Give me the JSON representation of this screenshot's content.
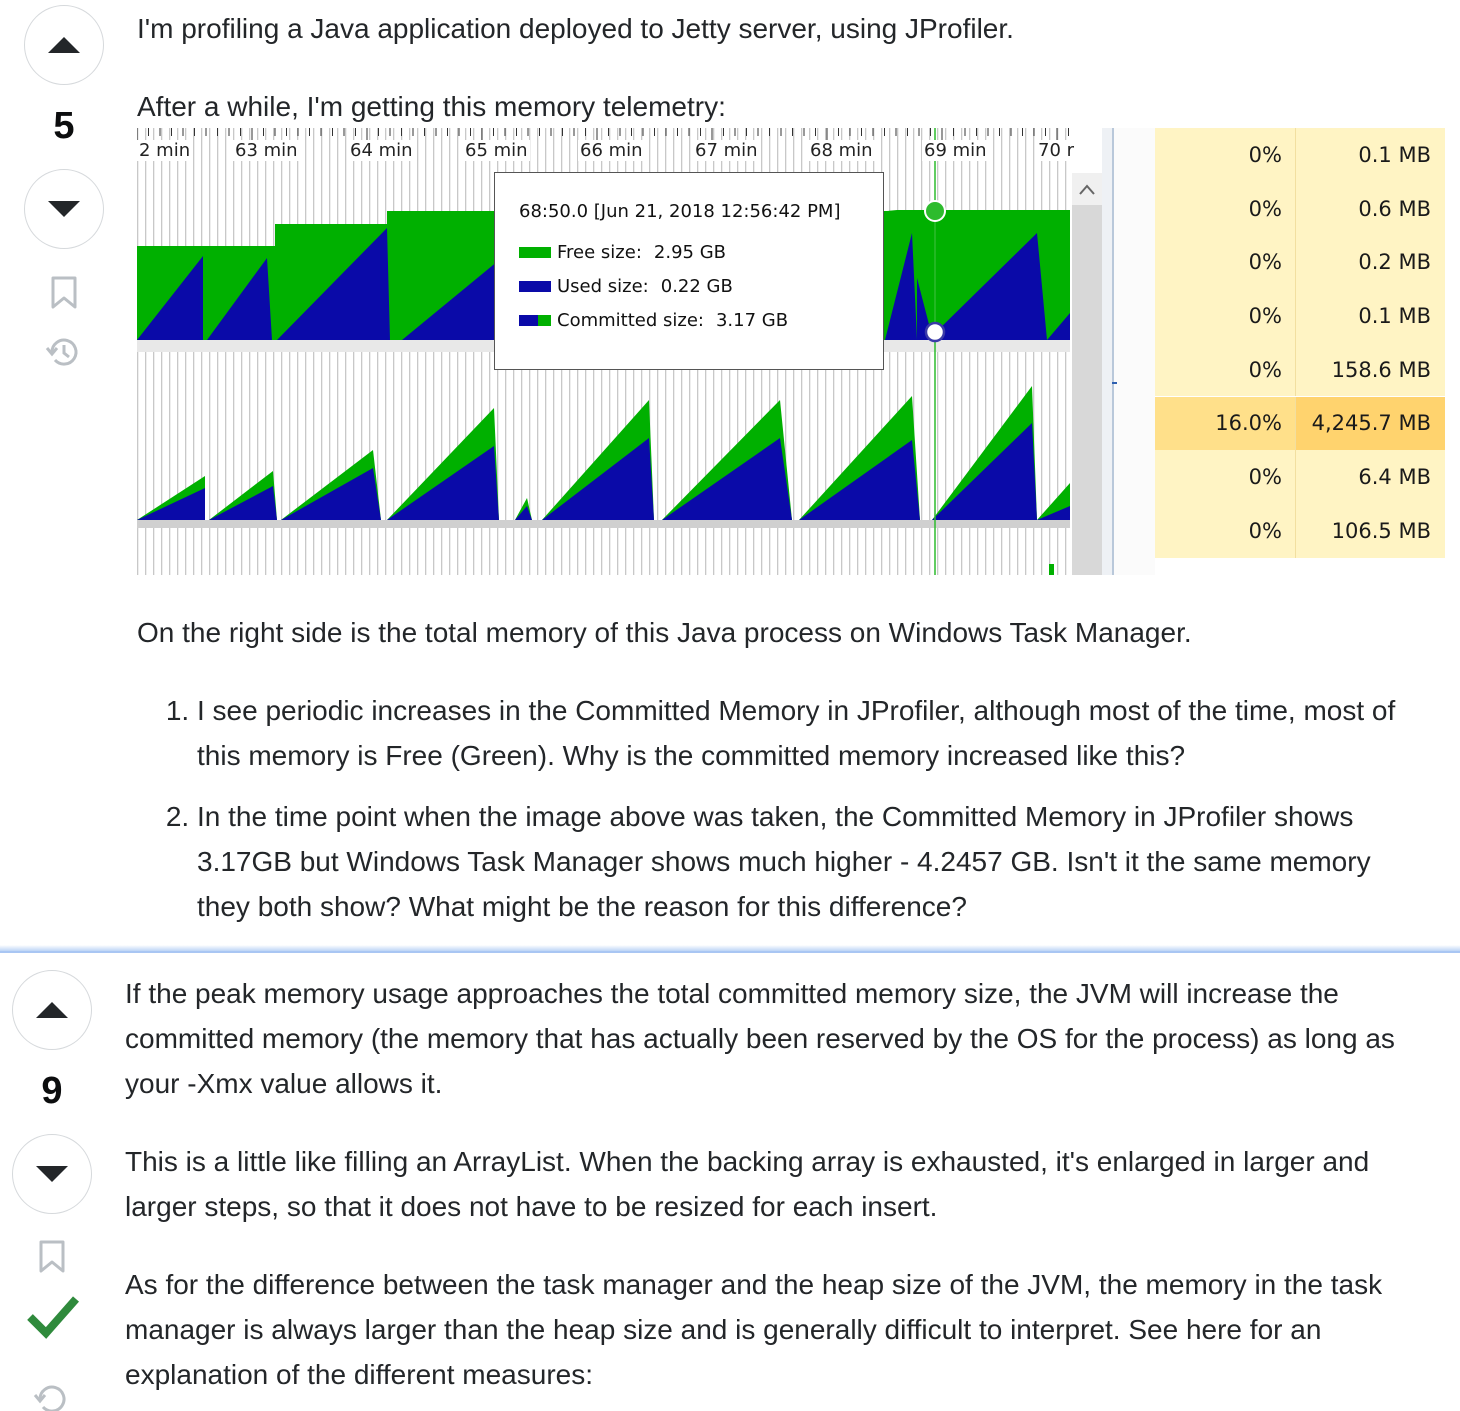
{
  "question": {
    "score": "5",
    "p1": "I'm profiling a Java application deployed to Jetty server, using JProfiler.",
    "p2": "After a while, I'm getting this memory telemetry:",
    "p3": "On the right side is the total memory of this Java process on Windows Task Manager.",
    "list": [
      "I see periodic increases in the Committed Memory in JProfiler, although most of the time, most of this memory is Free (Green). Why is the committed memory increased like this?",
      "In the time point when the image above was taken, the Committed Memory in JProfiler shows 3.17GB but Windows Task Manager shows much higher - 4.2457 GB. Isn't it the same memory they both show? What might be the reason for this difference?"
    ]
  },
  "screenshot": {
    "time_labels": [
      "2 min",
      "63 min",
      "64 min",
      "65 min",
      "66 min",
      "67 min",
      "68 min",
      "69 min",
      "70 r"
    ],
    "tooltip": {
      "title": "68:50.0 [Jun 21, 2018 12:56:42 PM]",
      "free_label": "Free size:",
      "free_value": "2.95 GB",
      "used_label": "Used size:",
      "used_value": "0.22 GB",
      "committed_label": "Committed size:",
      "committed_value": "3.17 GB"
    },
    "colors": {
      "free": "#00b000",
      "used": "#0a0aa8"
    },
    "task_manager": [
      {
        "cpu": "0%",
        "mem": "0.1 MB"
      },
      {
        "cpu": "0%",
        "mem": "0.6 MB"
      },
      {
        "cpu": "0%",
        "mem": "0.2 MB"
      },
      {
        "cpu": "0%",
        "mem": "0.1 MB"
      },
      {
        "cpu": "0%",
        "mem": "158.6 MB"
      },
      {
        "cpu": "16.0%",
        "mem": "4,245.7 MB",
        "highlight": true
      },
      {
        "cpu": "0%",
        "mem": "6.4 MB"
      },
      {
        "cpu": "0%",
        "mem": "106.5 MB"
      }
    ]
  },
  "answer": {
    "score": "9",
    "p1": "If the peak memory usage approaches the total committed memory size, the JVM will increase the committed memory (the memory that has actually been reserved by the OS for the process) as long as your -Xmx value allows it.",
    "p2": "This is a little like filling an ArrayList. When the backing array is exhausted, it's enlarged in larger and larger steps, so that it does not have to be resized for each insert.",
    "p3": "As for the difference between the task manager and the heap size of the JVM, the memory in the task manager is always larger than the heap size and is generally difficult to interpret. See here for an explanation of the different measures:"
  },
  "icons": {
    "upvote": "upvote-arrow-icon",
    "downvote": "downvote-arrow-icon",
    "bookmark": "bookmark-icon",
    "history": "history-icon",
    "accepted": "accepted-checkmark-icon"
  }
}
